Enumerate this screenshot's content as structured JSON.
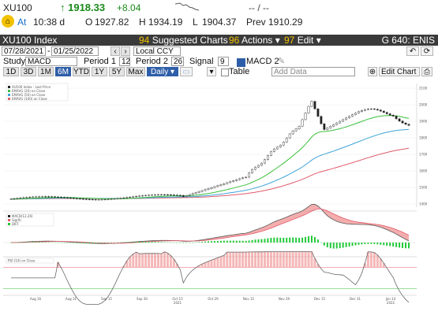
{
  "ticker": {
    "symbol": "XU100",
    "last": "↑ 1918.33",
    "change": "+8.04",
    "bid_ask": "-- / --"
  },
  "quote": {
    "at_label": "At",
    "time": "10:38 d",
    "open_label": "O",
    "open": "1927.82",
    "high_label": "H",
    "high": "1934.19",
    "low_label": "L",
    "low": "1904.37",
    "prev_label": "Prev",
    "prev": "1910.29"
  },
  "titlebar": {
    "title": "XU100 Index",
    "menus": [
      {
        "num": "94",
        "label": "Suggested Charts"
      },
      {
        "num": "96",
        "label": "Actions ▾"
      },
      {
        "num": "97",
        "label": "Edit ▾"
      }
    ],
    "code": "G 640: ENIS"
  },
  "controls": {
    "start_date": "07/28/2021",
    "end_date": "01/25/2022",
    "currency": "Local CCY",
    "study_label": "Study",
    "study": "MACD",
    "period1_label": "Period 1",
    "period1": "12",
    "period2_label": "Period 2",
    "period2": "26",
    "signal_label": "Signal",
    "signal": "9",
    "macd_label": "MACD 2",
    "ranges": [
      "1D",
      "3D",
      "1M",
      "6M",
      "YTD",
      "1Y",
      "5Y",
      "Max"
    ],
    "frequency": "Daily ▾",
    "table_label": "Table",
    "add_data_placeholder": "Add Data",
    "edit_chart_label": "Edit Chart"
  },
  "chart_data": [
    {
      "type": "line",
      "panel": "price",
      "y_ticks": [
        1400,
        1500,
        1600,
        1700,
        1800,
        1900,
        2000,
        2100
      ],
      "legend": [
        "XU100 Index - Last Price",
        "EMAVG (20) on Close",
        "EMAVG (50) on Close",
        "EMAVG (100) on Close"
      ]
    },
    {
      "type": "bar",
      "panel": "macd",
      "legend": [
        "MACD(12,26)",
        "Sig(9)",
        "DIFF"
      ]
    },
    {
      "type": "line",
      "panel": "rsi",
      "legend": [
        "RSI (14) on Close"
      ]
    }
  ],
  "x_axis_labels": [
    "Aug 16",
    "Aug 31",
    "Sep 15",
    "Sep 30",
    "Oct 15",
    "Oct 29",
    "Nov 15",
    "Nov 29",
    "Dec 15",
    "Dec 31",
    "Jan 14"
  ],
  "x_axis_sub": {
    "oct": "2021",
    "jan": "2022"
  }
}
